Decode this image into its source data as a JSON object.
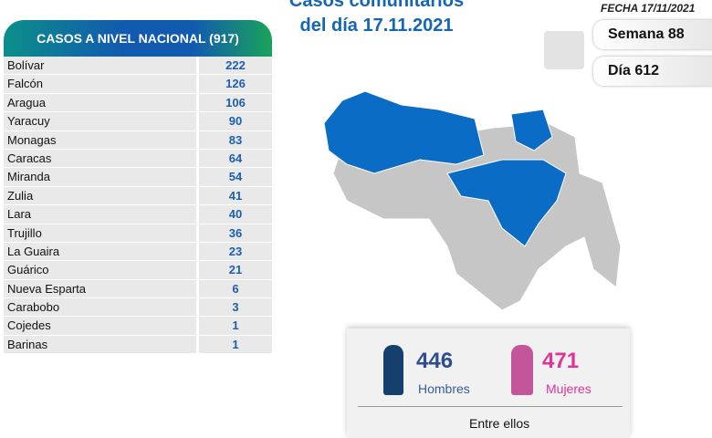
{
  "header": {
    "title_line1": "Casos comunitarios",
    "title_line2": "del día 17.11.2021",
    "fecha": "FECHA 17/11/2021",
    "semana": "Semana 88",
    "dia": "Día 612"
  },
  "table": {
    "title": "CASOS A NIVEL NACIONAL  (917)",
    "rows": [
      {
        "name": "Bolívar",
        "value": "222"
      },
      {
        "name": "Falcón",
        "value": "126"
      },
      {
        "name": "Aragua",
        "value": "106"
      },
      {
        "name": "Yaracuy",
        "value": "90"
      },
      {
        "name": "Monagas",
        "value": "83"
      },
      {
        "name": "Caracas",
        "value": "64"
      },
      {
        "name": "Miranda",
        "value": "54"
      },
      {
        "name": "Zulia",
        "value": "41"
      },
      {
        "name": "Lara",
        "value": "40"
      },
      {
        "name": "Trujillo",
        "value": "36"
      },
      {
        "name": "La Guaira",
        "value": "23"
      },
      {
        "name": "Guárico",
        "value": "21"
      },
      {
        "name": "Nueva Esparta",
        "value": "6"
      },
      {
        "name": "Carabobo",
        "value": "3"
      },
      {
        "name": "Cojedes",
        "value": "1"
      },
      {
        "name": "Barinas",
        "value": "1"
      }
    ]
  },
  "gender": {
    "men_count": "446",
    "men_label": "Hombres",
    "women_count": "471",
    "women_label": "Mujeres",
    "footer": "Entre ellos"
  },
  "colors": {
    "affected": "#0a6cc4",
    "unaffected": "#c6c6c6",
    "men": "#14406e",
    "women": "#e0339a"
  }
}
